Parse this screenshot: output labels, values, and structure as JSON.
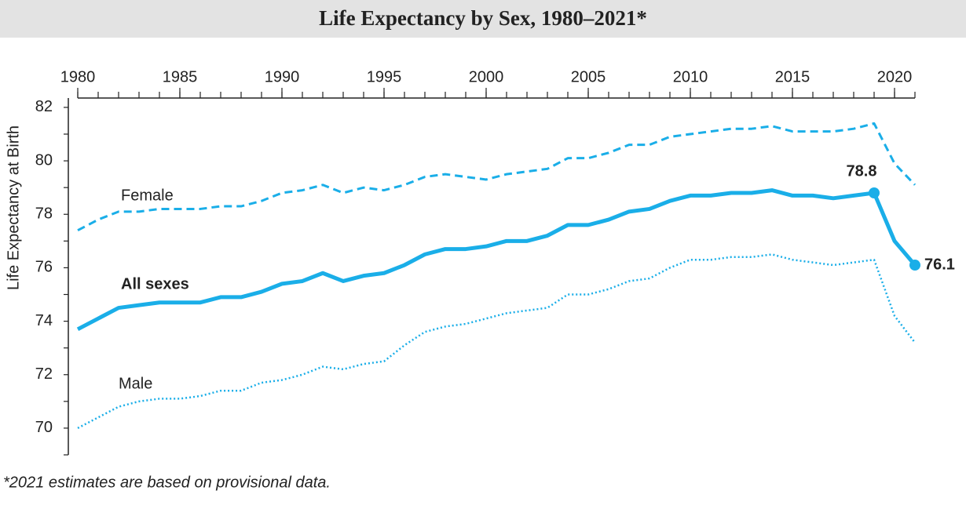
{
  "chart_data": {
    "type": "line",
    "title": "Life Expectancy by Sex, 1980–2021*",
    "y_label": "Life Expectancy at Birth",
    "footnote": "*2021 estimates are based on provisional data.",
    "x": [
      1980,
      1981,
      1982,
      1983,
      1984,
      1985,
      1986,
      1987,
      1988,
      1989,
      1990,
      1991,
      1992,
      1993,
      1994,
      1995,
      1996,
      1997,
      1998,
      1999,
      2000,
      2001,
      2002,
      2003,
      2004,
      2005,
      2006,
      2007,
      2008,
      2009,
      2010,
      2011,
      2012,
      2013,
      2014,
      2015,
      2016,
      2017,
      2018,
      2019,
      2020,
      2021
    ],
    "xlim": [
      1980,
      2021
    ],
    "xticks": [
      1980,
      1985,
      1990,
      1995,
      2000,
      2005,
      2010,
      2015,
      2020
    ],
    "xminor_ticks": [
      1980,
      1981,
      1982,
      1983,
      1984,
      1985,
      1986,
      1987,
      1988,
      1989,
      1990,
      1991,
      1992,
      1993,
      1994,
      1995,
      1996,
      1997,
      1998,
      1999,
      2000,
      2001,
      2002,
      2003,
      2004,
      2005,
      2006,
      2007,
      2008,
      2009,
      2010,
      2011,
      2012,
      2013,
      2014,
      2015,
      2016,
      2017,
      2018,
      2019,
      2020,
      2021
    ],
    "ylim": [
      69,
      82.35
    ],
    "yticks": [
      70,
      72,
      74,
      76,
      78,
      80,
      82
    ],
    "yminor_ticks": [
      69,
      71,
      73,
      75,
      77,
      79,
      81
    ],
    "series": [
      {
        "name": "Female",
        "color": "#1aaee8",
        "dash": "dashed",
        "values": [
          77.4,
          77.8,
          78.1,
          78.1,
          78.2,
          78.2,
          78.2,
          78.3,
          78.3,
          78.5,
          78.8,
          78.9,
          79.1,
          78.8,
          79.0,
          78.9,
          79.1,
          79.4,
          79.5,
          79.4,
          79.3,
          79.5,
          79.6,
          79.7,
          80.1,
          80.1,
          80.3,
          80.6,
          80.6,
          80.9,
          81.0,
          81.1,
          81.2,
          81.2,
          81.3,
          81.1,
          81.1,
          81.1,
          81.2,
          81.4,
          79.9,
          79.1
        ]
      },
      {
        "name": "All sexes",
        "color": "#1aaee8",
        "dash": "solid",
        "labeled_indices": [
          39,
          41
        ],
        "values": [
          73.7,
          74.1,
          74.5,
          74.6,
          74.7,
          74.7,
          74.7,
          74.9,
          74.9,
          75.1,
          75.4,
          75.5,
          75.8,
          75.5,
          75.7,
          75.8,
          76.1,
          76.5,
          76.7,
          76.7,
          76.8,
          77.0,
          77.0,
          77.2,
          77.6,
          77.6,
          77.8,
          78.1,
          78.2,
          78.5,
          78.7,
          78.7,
          78.8,
          78.8,
          78.9,
          78.7,
          78.7,
          78.6,
          78.7,
          78.8,
          77.0,
          76.1
        ]
      },
      {
        "name": "Male",
        "color": "#1aaee8",
        "dash": "dotted",
        "values": [
          70.0,
          70.4,
          70.8,
          71.0,
          71.1,
          71.1,
          71.2,
          71.4,
          71.4,
          71.7,
          71.8,
          72.0,
          72.3,
          72.2,
          72.4,
          72.5,
          73.1,
          73.6,
          73.8,
          73.9,
          74.1,
          74.3,
          74.4,
          74.5,
          75.0,
          75.0,
          75.2,
          75.5,
          75.6,
          76.0,
          76.3,
          76.3,
          76.4,
          76.4,
          76.5,
          76.3,
          76.2,
          76.1,
          76.2,
          76.3,
          74.2,
          73.2
        ]
      }
    ]
  }
}
